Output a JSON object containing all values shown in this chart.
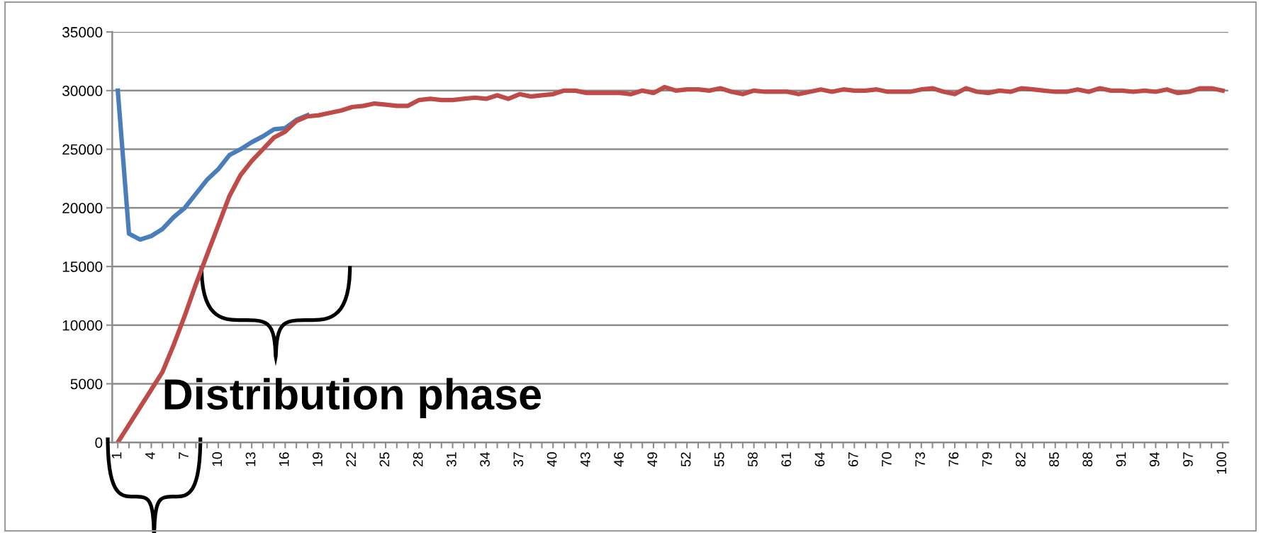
{
  "chart_data": {
    "type": "line",
    "categories": [
      "1",
      null,
      null,
      "4",
      null,
      null,
      "7",
      null,
      null,
      "10",
      null,
      null,
      "13",
      null,
      null,
      "16",
      null,
      null,
      "19",
      null,
      null,
      "22",
      null,
      null,
      "25",
      null,
      null,
      "28",
      null,
      null,
      "31",
      null,
      null,
      "34",
      null,
      null,
      "37",
      null,
      null,
      "40",
      null,
      null,
      "43",
      null,
      null,
      "46",
      null,
      null,
      "49",
      null,
      null,
      "52",
      null,
      null,
      "55",
      null,
      null,
      "58",
      null,
      null,
      "61",
      null,
      null,
      "64",
      null,
      null,
      "67",
      null,
      null,
      "70",
      null,
      null,
      "73",
      null,
      null,
      "76",
      null,
      null,
      "79",
      null,
      null,
      "82",
      null,
      null,
      "85",
      null,
      null,
      "88",
      null,
      null,
      "91",
      null,
      null,
      "94",
      null,
      null,
      "97",
      null,
      null,
      "100"
    ],
    "series": [
      {
        "color": "#4a7ebb",
        "values": [
          30000,
          17800,
          17300,
          17600,
          18200,
          19200,
          20000,
          21200,
          22400,
          23300,
          24500,
          25000,
          25600,
          26100,
          26700,
          26800,
          27500,
          27900,
          null,
          null,
          null,
          null,
          null,
          null,
          null,
          null,
          null,
          null,
          null,
          null,
          null,
          null,
          null,
          null,
          null,
          null,
          null,
          null,
          null,
          null,
          null,
          null,
          null,
          null,
          null,
          null,
          null,
          null,
          null,
          null,
          null,
          null,
          null,
          null,
          null,
          null,
          null,
          null,
          null,
          null,
          null,
          null,
          null,
          null,
          null,
          null,
          null,
          null,
          null,
          null,
          null,
          null,
          null,
          null,
          null,
          null,
          null,
          null,
          null,
          null,
          null,
          null,
          null,
          null,
          null,
          null,
          null,
          null,
          null,
          null,
          null,
          null,
          null,
          null,
          null,
          null,
          null,
          null,
          null,
          null
        ]
      },
      {
        "color": "#be4b48",
        "values": [
          0,
          1500,
          3000,
          4500,
          6000,
          8300,
          10800,
          13500,
          16000,
          18500,
          21000,
          22800,
          24000,
          25000,
          26000,
          26500,
          27400,
          27800,
          27900,
          28100,
          28300,
          28600,
          28700,
          28900,
          28800,
          28700,
          28700,
          29200,
          29300,
          29200,
          29200,
          29300,
          29400,
          29300,
          29600,
          29300,
          29700,
          29500,
          29600,
          29700,
          30000,
          30000,
          29800,
          29800,
          29800,
          29800,
          29700,
          30000,
          29800,
          30300,
          30000,
          30100,
          30100,
          30000,
          30200,
          29900,
          29700,
          30000,
          29900,
          29900,
          29900,
          29700,
          29900,
          30100,
          29900,
          30100,
          30000,
          30000,
          30100,
          29900,
          29900,
          29900,
          30100,
          30200,
          29900,
          29700,
          30200,
          29900,
          29800,
          30000,
          29900,
          30200,
          30100,
          30000,
          29900,
          29900,
          30100,
          29900,
          30200,
          30000,
          30000,
          29900,
          30000,
          29900,
          30100,
          29800,
          29900,
          30200,
          30200,
          30000
        ]
      }
    ],
    "ylim": [
      0,
      35000
    ],
    "yticks": [
      0,
      5000,
      10000,
      15000,
      20000,
      25000,
      30000,
      35000
    ],
    "grid": "y",
    "legend": false,
    "marker": "none",
    "line_style": "solid",
    "annotations": [
      "Distribution phase"
    ]
  }
}
